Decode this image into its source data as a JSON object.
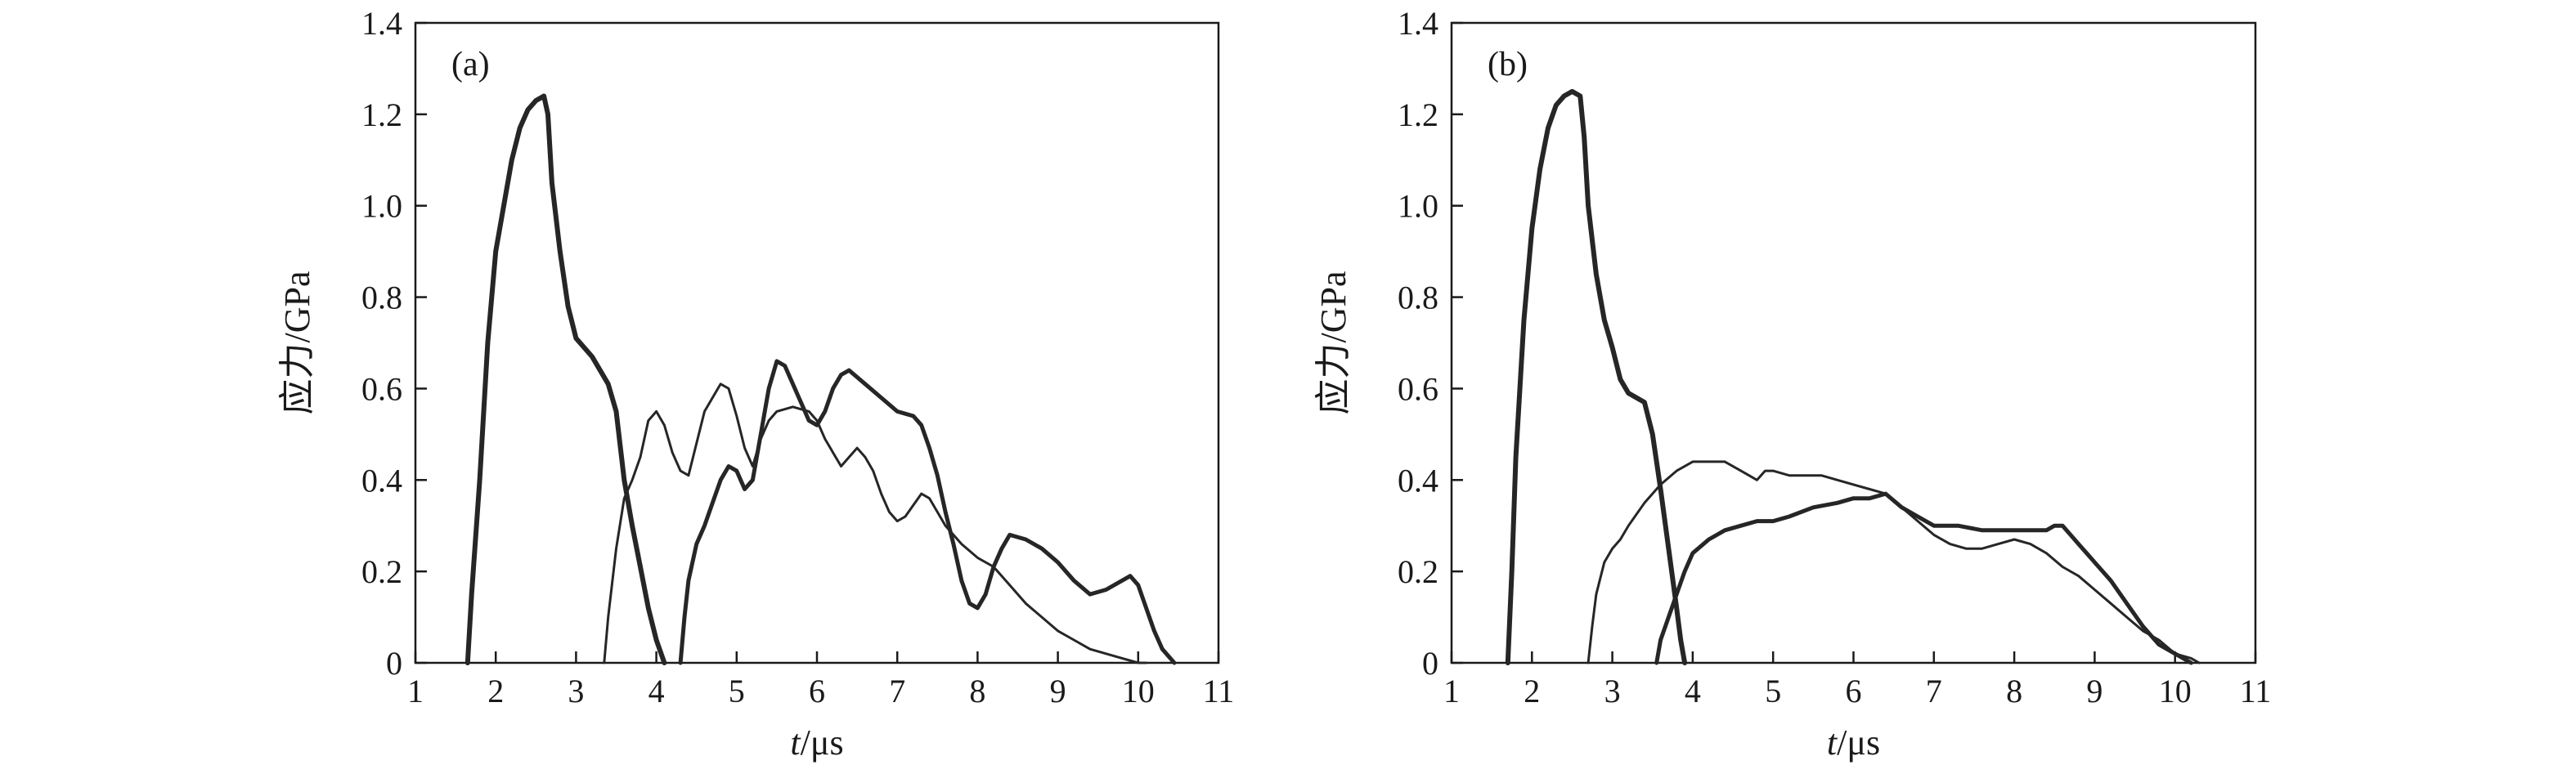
{
  "chart_data": [
    {
      "type": "line",
      "panel_label": "(a)",
      "xlabel_italic": "t",
      "xlabel_unit": "/μs",
      "ylabel": "应力/GPa",
      "xlim": [
        1,
        11
      ],
      "ylim": [
        0,
        1.4
      ],
      "xticks": [
        "1",
        "2",
        "3",
        "4",
        "5",
        "6",
        "7",
        "8",
        "9",
        "10",
        "11"
      ],
      "yticks": [
        "0",
        "0.2",
        "0.4",
        "0.6",
        "0.8",
        "1.0",
        "1.2",
        "1.4"
      ],
      "grid": false,
      "series": [
        {
          "width": 6,
          "points": [
            [
              1.65,
              0
            ],
            [
              1.7,
              0.15
            ],
            [
              1.8,
              0.4
            ],
            [
              1.9,
              0.7
            ],
            [
              2.0,
              0.9
            ],
            [
              2.1,
              1.0
            ],
            [
              2.2,
              1.1
            ],
            [
              2.3,
              1.17
            ],
            [
              2.4,
              1.21
            ],
            [
              2.5,
              1.23
            ],
            [
              2.6,
              1.24
            ],
            [
              2.65,
              1.2
            ],
            [
              2.7,
              1.05
            ],
            [
              2.8,
              0.9
            ],
            [
              2.9,
              0.78
            ],
            [
              3.0,
              0.71
            ],
            [
              3.2,
              0.67
            ],
            [
              3.4,
              0.61
            ],
            [
              3.5,
              0.55
            ],
            [
              3.6,
              0.4
            ],
            [
              3.7,
              0.3
            ],
            [
              3.8,
              0.21
            ],
            [
              3.9,
              0.12
            ],
            [
              4.0,
              0.05
            ],
            [
              4.1,
              0
            ]
          ]
        },
        {
          "width": 3,
          "points": [
            [
              3.35,
              0
            ],
            [
              3.4,
              0.1
            ],
            [
              3.5,
              0.25
            ],
            [
              3.6,
              0.36
            ],
            [
              3.7,
              0.4
            ],
            [
              3.8,
              0.45
            ],
            [
              3.9,
              0.53
            ],
            [
              4.0,
              0.55
            ],
            [
              4.1,
              0.52
            ],
            [
              4.2,
              0.46
            ],
            [
              4.3,
              0.42
            ],
            [
              4.4,
              0.41
            ],
            [
              4.5,
              0.48
            ],
            [
              4.6,
              0.55
            ],
            [
              4.8,
              0.61
            ],
            [
              4.9,
              0.6
            ],
            [
              5.0,
              0.54
            ],
            [
              5.1,
              0.47
            ],
            [
              5.2,
              0.43
            ],
            [
              5.3,
              0.49
            ],
            [
              5.4,
              0.53
            ],
            [
              5.5,
              0.55
            ],
            [
              5.7,
              0.56
            ],
            [
              5.9,
              0.55
            ],
            [
              6.0,
              0.53
            ],
            [
              6.1,
              0.49
            ],
            [
              6.2,
              0.46
            ],
            [
              6.3,
              0.43
            ],
            [
              6.4,
              0.45
            ],
            [
              6.5,
              0.47
            ],
            [
              6.6,
              0.45
            ],
            [
              6.7,
              0.42
            ],
            [
              6.8,
              0.37
            ],
            [
              6.9,
              0.33
            ],
            [
              7.0,
              0.31
            ],
            [
              7.1,
              0.32
            ],
            [
              7.3,
              0.37
            ],
            [
              7.4,
              0.36
            ],
            [
              7.6,
              0.3
            ],
            [
              7.8,
              0.26
            ],
            [
              8.0,
              0.23
            ],
            [
              8.2,
              0.21
            ],
            [
              8.4,
              0.17
            ],
            [
              8.6,
              0.13
            ],
            [
              8.8,
              0.1
            ],
            [
              9.0,
              0.07
            ],
            [
              9.2,
              0.05
            ],
            [
              9.4,
              0.03
            ],
            [
              9.6,
              0.02
            ],
            [
              9.8,
              0.01
            ],
            [
              10.0,
              0
            ],
            [
              10.1,
              0
            ]
          ]
        },
        {
          "width": 5,
          "points": [
            [
              4.3,
              0
            ],
            [
              4.35,
              0.1
            ],
            [
              4.4,
              0.18
            ],
            [
              4.5,
              0.26
            ],
            [
              4.6,
              0.3
            ],
            [
              4.7,
              0.35
            ],
            [
              4.8,
              0.4
            ],
            [
              4.9,
              0.43
            ],
            [
              5.0,
              0.42
            ],
            [
              5.1,
              0.38
            ],
            [
              5.2,
              0.4
            ],
            [
              5.3,
              0.5
            ],
            [
              5.4,
              0.6
            ],
            [
              5.5,
              0.66
            ],
            [
              5.6,
              0.65
            ],
            [
              5.7,
              0.61
            ],
            [
              5.8,
              0.57
            ],
            [
              5.9,
              0.53
            ],
            [
              6.0,
              0.52
            ],
            [
              6.1,
              0.55
            ],
            [
              6.2,
              0.6
            ],
            [
              6.3,
              0.63
            ],
            [
              6.4,
              0.64
            ],
            [
              6.6,
              0.61
            ],
            [
              6.8,
              0.58
            ],
            [
              7.0,
              0.55
            ],
            [
              7.2,
              0.54
            ],
            [
              7.3,
              0.52
            ],
            [
              7.4,
              0.47
            ],
            [
              7.5,
              0.41
            ],
            [
              7.6,
              0.33
            ],
            [
              7.7,
              0.26
            ],
            [
              7.8,
              0.18
            ],
            [
              7.9,
              0.13
            ],
            [
              8.0,
              0.12
            ],
            [
              8.1,
              0.15
            ],
            [
              8.2,
              0.21
            ],
            [
              8.3,
              0.25
            ],
            [
              8.4,
              0.28
            ],
            [
              8.6,
              0.27
            ],
            [
              8.8,
              0.25
            ],
            [
              9.0,
              0.22
            ],
            [
              9.2,
              0.18
            ],
            [
              9.4,
              0.15
            ],
            [
              9.6,
              0.16
            ],
            [
              9.8,
              0.18
            ],
            [
              9.9,
              0.19
            ],
            [
              10.0,
              0.17
            ],
            [
              10.1,
              0.12
            ],
            [
              10.2,
              0.07
            ],
            [
              10.3,
              0.03
            ],
            [
              10.45,
              0
            ]
          ]
        }
      ]
    },
    {
      "type": "line",
      "panel_label": "(b)",
      "xlabel_italic": "t",
      "xlabel_unit": "/μs",
      "ylabel": "应力/GPa",
      "xlim": [
        1,
        11
      ],
      "ylim": [
        0,
        1.4
      ],
      "xticks": [
        "1",
        "2",
        "3",
        "4",
        "5",
        "6",
        "7",
        "8",
        "9",
        "10",
        "11"
      ],
      "yticks": [
        "0",
        "0.2",
        "0.4",
        "0.6",
        "0.8",
        "1.0",
        "1.2",
        "1.4"
      ],
      "grid": false,
      "series": [
        {
          "width": 6,
          "points": [
            [
              1.7,
              0
            ],
            [
              1.75,
              0.2
            ],
            [
              1.8,
              0.45
            ],
            [
              1.9,
              0.75
            ],
            [
              2.0,
              0.95
            ],
            [
              2.1,
              1.08
            ],
            [
              2.2,
              1.17
            ],
            [
              2.3,
              1.22
            ],
            [
              2.4,
              1.24
            ],
            [
              2.5,
              1.25
            ],
            [
              2.6,
              1.24
            ],
            [
              2.65,
              1.15
            ],
            [
              2.7,
              1.0
            ],
            [
              2.8,
              0.85
            ],
            [
              2.9,
              0.75
            ],
            [
              3.0,
              0.69
            ],
            [
              3.1,
              0.62
            ],
            [
              3.2,
              0.59
            ],
            [
              3.3,
              0.58
            ],
            [
              3.4,
              0.57
            ],
            [
              3.5,
              0.5
            ],
            [
              3.6,
              0.38
            ],
            [
              3.7,
              0.25
            ],
            [
              3.8,
              0.12
            ],
            [
              3.85,
              0.05
            ],
            [
              3.9,
              0
            ]
          ]
        },
        {
          "width": 3,
          "points": [
            [
              2.7,
              0
            ],
            [
              2.75,
              0.08
            ],
            [
              2.8,
              0.15
            ],
            [
              2.9,
              0.22
            ],
            [
              3.0,
              0.25
            ],
            [
              3.1,
              0.27
            ],
            [
              3.2,
              0.3
            ],
            [
              3.4,
              0.35
            ],
            [
              3.6,
              0.39
            ],
            [
              3.8,
              0.42
            ],
            [
              4.0,
              0.44
            ],
            [
              4.2,
              0.44
            ],
            [
              4.4,
              0.44
            ],
            [
              4.6,
              0.42
            ],
            [
              4.8,
              0.4
            ],
            [
              4.9,
              0.42
            ],
            [
              5.0,
              0.42
            ],
            [
              5.2,
              0.41
            ],
            [
              5.6,
              0.41
            ],
            [
              6.0,
              0.39
            ],
            [
              6.2,
              0.38
            ],
            [
              6.4,
              0.37
            ],
            [
              6.6,
              0.34
            ],
            [
              6.8,
              0.31
            ],
            [
              7.0,
              0.28
            ],
            [
              7.2,
              0.26
            ],
            [
              7.4,
              0.25
            ],
            [
              7.6,
              0.25
            ],
            [
              7.8,
              0.26
            ],
            [
              8.0,
              0.27
            ],
            [
              8.2,
              0.26
            ],
            [
              8.4,
              0.24
            ],
            [
              8.6,
              0.21
            ],
            [
              8.8,
              0.19
            ],
            [
              9.0,
              0.16
            ],
            [
              9.2,
              0.13
            ],
            [
              9.4,
              0.1
            ],
            [
              9.6,
              0.07
            ],
            [
              9.8,
              0.05
            ],
            [
              10.0,
              0.02
            ],
            [
              10.2,
              0.01
            ],
            [
              10.3,
              0
            ]
          ]
        },
        {
          "width": 5,
          "points": [
            [
              3.55,
              0
            ],
            [
              3.6,
              0.05
            ],
            [
              3.7,
              0.1
            ],
            [
              3.8,
              0.15
            ],
            [
              3.9,
              0.2
            ],
            [
              4.0,
              0.24
            ],
            [
              4.2,
              0.27
            ],
            [
              4.4,
              0.29
            ],
            [
              4.6,
              0.3
            ],
            [
              4.8,
              0.31
            ],
            [
              5.0,
              0.31
            ],
            [
              5.2,
              0.32
            ],
            [
              5.5,
              0.34
            ],
            [
              5.8,
              0.35
            ],
            [
              6.0,
              0.36
            ],
            [
              6.2,
              0.36
            ],
            [
              6.4,
              0.37
            ],
            [
              6.6,
              0.34
            ],
            [
              6.8,
              0.32
            ],
            [
              7.0,
              0.3
            ],
            [
              7.3,
              0.3
            ],
            [
              7.6,
              0.29
            ],
            [
              7.9,
              0.29
            ],
            [
              8.2,
              0.29
            ],
            [
              8.4,
              0.29
            ],
            [
              8.5,
              0.3
            ],
            [
              8.6,
              0.3
            ],
            [
              8.7,
              0.28
            ],
            [
              8.8,
              0.26
            ],
            [
              8.9,
              0.24
            ],
            [
              9.0,
              0.22
            ],
            [
              9.2,
              0.18
            ],
            [
              9.4,
              0.13
            ],
            [
              9.6,
              0.08
            ],
            [
              9.8,
              0.04
            ],
            [
              10.0,
              0.02
            ],
            [
              10.2,
              0
            ]
          ]
        }
      ]
    }
  ]
}
